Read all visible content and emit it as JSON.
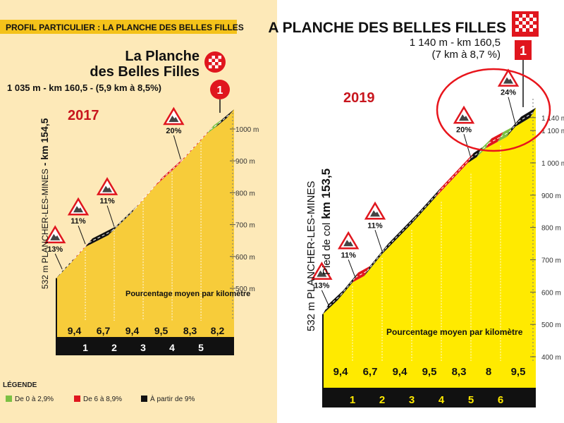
{
  "colors": {
    "paper": "#fde9b8",
    "left_fill": "#f7cc3a",
    "right_fill": "#ffea00",
    "black_seg": "#111111",
    "red_seg": "#e0161e",
    "green_seg": "#7bc043",
    "year_label": "#c8161e",
    "annotation": "#e8151c",
    "header_bar": "#f4c21a",
    "flag_red": "#e0161e"
  },
  "legend": {
    "title": "LÉGENDE",
    "items": [
      {
        "label": "De 0 à 2,9%",
        "color": "green"
      },
      {
        "label": "De 6 à 8,9%",
        "color": "red"
      },
      {
        "label": "À partir de 9%",
        "color": "black"
      }
    ]
  },
  "chart_data": [
    {
      "type": "area",
      "year_label": "2017",
      "header": "PROFIL PARTICULIER : LA PLANCHE DES BELLES FILLES",
      "title": "La Planche\ndes Belles Filles",
      "title_lines": [
        "La Planche",
        "des Belles Filles"
      ],
      "subtitle": "1 035 m - km 160,5 - (5,9 km à 8,5%)",
      "start_label": "532 m PLANCHER-LES-MINES",
      "start_km_label": "- km 154,5",
      "category_badge": "1",
      "avg_label": "Pourcentage moyen par kilomètre",
      "y_unit": "m",
      "y_ticks": [
        500,
        600,
        700,
        800,
        900,
        1000
      ],
      "y_tick_labels": [
        "500 m",
        "600 m",
        "700 m",
        "800 m",
        "900 m",
        "1000 m"
      ],
      "ylim": [
        450,
        1035
      ],
      "x_km_labels": [
        "1",
        "2",
        "3",
        "4",
        "5"
      ],
      "km_avg_pct": [
        "9,4",
        "6,7",
        "9,4",
        "9,5",
        "8,3",
        "8,2"
      ],
      "x": [
        0,
        0.5,
        1.0,
        1.8,
        2.6,
        3.4,
        4.2,
        5.2,
        5.5,
        5.9
      ],
      "y": [
        532,
        580,
        630,
        667,
        737,
        820,
        886,
        985,
        1005,
        1035
      ],
      "segment_colors": [
        "black",
        "red",
        "black",
        "black",
        "red",
        "red",
        "red",
        "green",
        "black"
      ],
      "max_grade_markers": [
        {
          "label": "13%",
          "km": 0.2
        },
        {
          "label": "11%",
          "km": 1.0
        },
        {
          "label": "11%",
          "km": 2.0
        },
        {
          "label": "20%",
          "km": 4.3
        }
      ]
    },
    {
      "type": "area",
      "year_label": "2019",
      "title": "A PLANCHE DES BELLES FILLES",
      "subtitle": "1 140 m - km 160,5",
      "subtitle2": "(7 km à 8,7 %)",
      "start_label": "532 m PLANCHER-LES-MINES",
      "start_sub_prefix": "Pied de col",
      "start_km_label": "km 153,5",
      "category_badge": "1",
      "avg_label": "Pourcentage moyen par kilomètre",
      "y_ticks": [
        400,
        500,
        600,
        700,
        800,
        900,
        1000,
        1100,
        1140
      ],
      "y_tick_labels": [
        "400 m",
        "500 m",
        "600 m",
        "700 m",
        "800 m",
        "900 m",
        "1 000 m",
        "1 100 m",
        "1 140 m"
      ],
      "ylim": [
        380,
        1145
      ],
      "x_km_labels": [
        "1",
        "2",
        "3",
        "4",
        "5",
        "6"
      ],
      "km_avg_pct": [
        "9,4",
        "6,7",
        "9,4",
        "9,5",
        "8,3",
        "8",
        "9,5"
      ],
      "x": [
        0,
        0.5,
        1.0,
        1.4,
        2.0,
        3.0,
        3.8,
        4.9,
        5.2,
        5.5,
        5.9,
        6.2,
        6.5,
        7.0
      ],
      "y": [
        532,
        575,
        630,
        650,
        718,
        812,
        893,
        1000,
        1018,
        1045,
        1065,
        1080,
        1112,
        1140
      ],
      "segment_colors": [
        "black",
        "black",
        "red",
        "black",
        "black",
        "black",
        "red",
        "black",
        "green",
        "red",
        "green",
        "black",
        "black"
      ],
      "max_grade_markers": [
        {
          "label": "13%",
          "km": 0.2
        },
        {
          "label": "11%",
          "km": 1.1
        },
        {
          "label": "11%",
          "km": 2.0
        },
        {
          "label": "20%",
          "km": 5.0
        },
        {
          "label": "24%",
          "km": 6.5
        }
      ],
      "annotation": "circled 24% section"
    }
  ]
}
